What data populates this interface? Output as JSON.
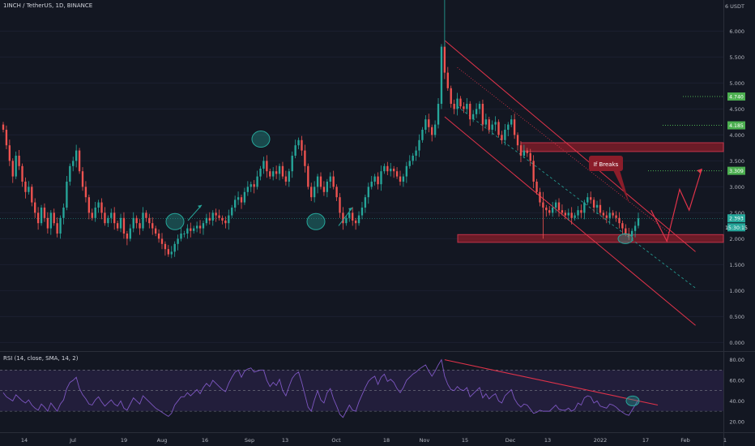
{
  "header": {
    "symbol_line": "1INCH / TetherUS, 1D, BINANCE"
  },
  "rsi": {
    "label": "RSI (14, close, SMA, 14, 2)"
  },
  "annotation": {
    "if_breaks": "If Breaks"
  },
  "colors": {
    "background": "#131722",
    "up": "#26a69a",
    "down": "#ef5350",
    "channel": "#e0334a",
    "zone": "#8b1d2a",
    "target": "#4caf50",
    "rsi_line": "#7e57c2",
    "rsi_band": "#2a2246"
  },
  "chart_data": [
    {
      "type": "candlestick",
      "title": "1INCH / TetherUS, 1D, BINANCE",
      "y_axis": {
        "unit": "USDT",
        "ticks": [
          0.0,
          0.5,
          1.0,
          1.5,
          2.0,
          2.5,
          3.0,
          3.5,
          4.0,
          4.5,
          5.0,
          5.5,
          6.0
        ],
        "top_label": "6 USDT",
        "range": [
          -0.15,
          6.6
        ]
      },
      "x_axis": {
        "ticks": [
          "14",
          "Jul",
          "19",
          "Aug",
          "16",
          "Sep",
          "13",
          "Oct",
          "18",
          "Nov",
          "15",
          "Dec",
          "13",
          "2022",
          "17",
          "Feb",
          "1"
        ]
      },
      "price_labels": [
        {
          "value": 4.74,
          "text": "4.740",
          "color": "#4caf50"
        },
        {
          "value": 4.185,
          "text": "4.185",
          "color": "#4caf50"
        },
        {
          "value": 3.309,
          "text": "3.309",
          "color": "#4caf50"
        },
        {
          "value": 2.393,
          "text": "2.393",
          "color": "#26a69a"
        },
        {
          "value": 2.22,
          "text": "15:30:15",
          "color": "#26a69a"
        }
      ],
      "closes": [
        4.1,
        3.8,
        3.5,
        3.2,
        3.6,
        3.4,
        3.1,
        2.9,
        3.0,
        2.7,
        2.5,
        2.3,
        2.6,
        2.4,
        2.2,
        2.5,
        2.3,
        2.1,
        2.4,
        2.6,
        3.1,
        3.4,
        3.5,
        3.7,
        3.3,
        3.0,
        2.8,
        2.5,
        2.4,
        2.6,
        2.7,
        2.5,
        2.3,
        2.4,
        2.5,
        2.3,
        2.2,
        2.4,
        2.1,
        2.0,
        2.2,
        2.4,
        2.3,
        2.2,
        2.5,
        2.4,
        2.3,
        2.2,
        2.1,
        2.0,
        1.9,
        1.8,
        1.7,
        1.75,
        1.9,
        2.0,
        2.1,
        2.1,
        2.2,
        2.15,
        2.2,
        2.25,
        2.2,
        2.3,
        2.4,
        2.35,
        2.5,
        2.45,
        2.4,
        2.35,
        2.3,
        2.45,
        2.6,
        2.75,
        2.8,
        2.7,
        2.9,
        3.0,
        3.05,
        3.0,
        3.2,
        3.35,
        3.5,
        3.3,
        3.2,
        3.3,
        3.25,
        3.4,
        3.2,
        3.1,
        3.3,
        3.6,
        3.8,
        3.9,
        3.7,
        3.4,
        3.0,
        2.8,
        3.0,
        3.2,
        3.0,
        2.9,
        3.1,
        3.2,
        3.0,
        2.8,
        2.5,
        2.3,
        2.4,
        2.5,
        2.35,
        2.3,
        2.45,
        2.6,
        2.8,
        3.0,
        3.1,
        3.2,
        3.05,
        3.3,
        3.4,
        3.3,
        3.35,
        3.3,
        3.2,
        3.1,
        3.2,
        3.4,
        3.5,
        3.6,
        3.7,
        3.9,
        4.1,
        4.3,
        4.15,
        4.0,
        4.2,
        4.6,
        5.7,
        5.2,
        4.9,
        4.6,
        4.5,
        4.7,
        4.55,
        4.5,
        4.6,
        4.3,
        4.4,
        4.5,
        4.6,
        4.2,
        4.3,
        4.1,
        4.2,
        4.25,
        4.0,
        3.9,
        4.1,
        4.2,
        4.3,
        4.0,
        3.8,
        3.6,
        3.7,
        3.65,
        3.5,
        3.1,
        2.9,
        2.7,
        2.6,
        2.55,
        2.5,
        2.6,
        2.7,
        2.55,
        2.5,
        2.45,
        2.5,
        2.4,
        2.45,
        2.55,
        2.5,
        2.7,
        2.8,
        2.75,
        2.6,
        2.65,
        2.5,
        2.45,
        2.4,
        2.5,
        2.45,
        2.4,
        2.3,
        2.2,
        2.1,
        2.05,
        2.15,
        2.25,
        2.393
      ],
      "rsi": {
        "ticks": [
          20.0,
          40.0,
          60.0,
          80.0
        ],
        "range": [
          12,
          86
        ],
        "bands": [
          30,
          50,
          70
        ],
        "values": [
          48,
          44,
          42,
          40,
          46,
          43,
          40,
          38,
          41,
          36,
          33,
          31,
          37,
          34,
          30,
          38,
          34,
          30,
          37,
          41,
          52,
          58,
          60,
          63,
          52,
          46,
          42,
          37,
          36,
          41,
          44,
          39,
          35,
          38,
          41,
          37,
          35,
          40,
          33,
          31,
          37,
          43,
          40,
          37,
          45,
          42,
          39,
          36,
          33,
          31,
          29,
          27,
          25,
          28,
          36,
          40,
          44,
          44,
          48,
          45,
          48,
          51,
          47,
          53,
          57,
          54,
          60,
          57,
          54,
          51,
          49,
          57,
          63,
          68,
          70,
          63,
          69,
          71,
          72,
          68,
          69,
          70,
          70,
          60,
          54,
          58,
          55,
          61,
          50,
          45,
          54,
          62,
          66,
          68,
          58,
          46,
          34,
          30,
          41,
          50,
          41,
          38,
          48,
          52,
          42,
          35,
          27,
          24,
          30,
          36,
          31,
          30,
          39,
          46,
          53,
          59,
          62,
          64,
          56,
          63,
          66,
          59,
          61,
          58,
          52,
          48,
          53,
          60,
          63,
          66,
          68,
          71,
          73,
          75,
          69,
          64,
          69,
          75,
          80,
          64,
          56,
          51,
          50,
          54,
          51,
          50,
          53,
          44,
          47,
          50,
          53,
          43,
          47,
          42,
          45,
          47,
          40,
          38,
          45,
          48,
          51,
          42,
          37,
          34,
          37,
          36,
          32,
          28,
          29,
          31,
          30,
          30,
          30,
          33,
          36,
          32,
          31,
          31,
          33,
          30,
          32,
          38,
          36,
          43,
          45,
          44,
          38,
          40,
          35,
          34,
          33,
          37,
          36,
          34,
          31,
          29,
          27,
          26,
          31,
          36,
          41
        ]
      }
    }
  ]
}
